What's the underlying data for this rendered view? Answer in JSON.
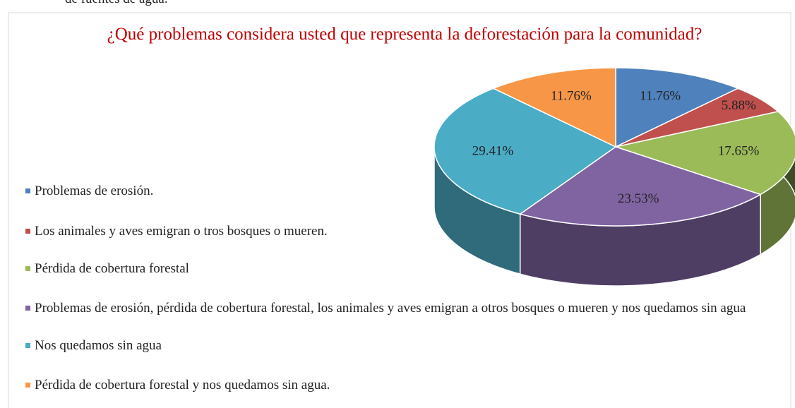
{
  "header_text": "de fuentes de agua.",
  "chart_data": {
    "type": "pie",
    "style": "3d",
    "title": "¿Qué problemas considera usted que representa la deforestación para la comunidad?",
    "categories": [
      "Problemas de erosión.",
      "Los animales y aves emigran o tros bosques o mueren.",
      "Pérdida de cobertura forestal",
      "Problemas de erosión, pérdida de cobertura forestal, los animales y aves emigran a otros bosques o mueren y nos quedamos sin agua",
      "Nos quedamos sin agua",
      "Pérdida de cobertura forestal y nos quedamos sin agua."
    ],
    "values": [
      11.76,
      5.88,
      17.65,
      23.53,
      29.41,
      11.76
    ],
    "value_labels": [
      "11.76%",
      "5.88%",
      "17.65%",
      "23.53%",
      "29.41%",
      "11.76%"
    ],
    "colors": [
      "#4f81bd",
      "#c0504d",
      "#9bbb59",
      "#8064a2",
      "#4bacc6",
      "#f79646"
    ],
    "legend": "left"
  }
}
